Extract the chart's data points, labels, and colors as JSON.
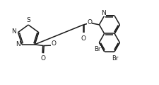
{
  "bg_color": "#ffffff",
  "line_color": "#1a1a1a",
  "lw": 1.1,
  "fontsize": 6.5,
  "figsize": [
    2.25,
    1.2
  ],
  "dpi": 100,
  "xlim": [
    0,
    10.5
  ],
  "ylim": [
    0,
    5.5
  ]
}
